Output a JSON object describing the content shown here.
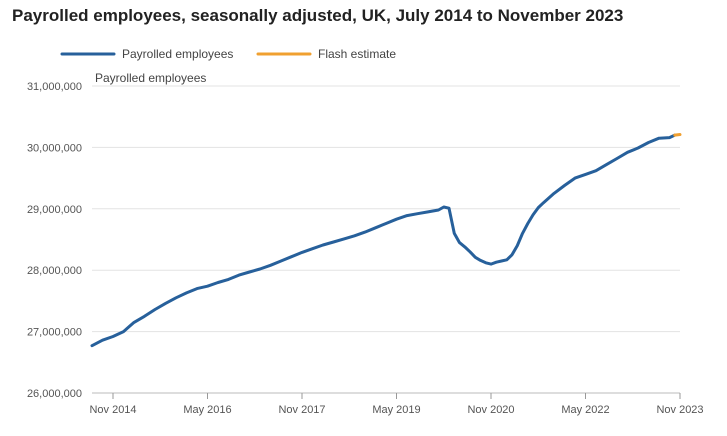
{
  "chart_data": {
    "type": "line",
    "title": "Payrolled employees, seasonally adjusted, UK, July 2014 to November 2023",
    "ylabel": "Payrolled employees",
    "ylim": [
      26000000,
      31000000
    ],
    "yticks": [
      26000000,
      27000000,
      28000000,
      29000000,
      30000000,
      31000000
    ],
    "ytick_labels": [
      "26,000,000",
      "27,000,000",
      "28,000,000",
      "29,000,000",
      "30,000,000",
      "31,000,000"
    ],
    "xlim": [
      "2014-07",
      "2023-11"
    ],
    "xtick_labels": [
      "Nov 2014",
      "May 2016",
      "Nov 2017",
      "May 2019",
      "Nov 2020",
      "May 2022",
      "Nov 2023"
    ],
    "xtick_dates": [
      "2014-11",
      "2016-05",
      "2017-11",
      "2019-05",
      "2020-11",
      "2022-05",
      "2023-11"
    ],
    "grid": true,
    "legend_position": "top-left",
    "series": [
      {
        "name": "Payrolled employees",
        "color": "#27609b",
        "points": [
          [
            "2014-07",
            26770000
          ],
          [
            "2014-09",
            26860000
          ],
          [
            "2014-11",
            26920000
          ],
          [
            "2015-01",
            27000000
          ],
          [
            "2015-03",
            27150000
          ],
          [
            "2015-05",
            27250000
          ],
          [
            "2015-07",
            27360000
          ],
          [
            "2015-09",
            27460000
          ],
          [
            "2015-11",
            27550000
          ],
          [
            "2016-01",
            27630000
          ],
          [
            "2016-03",
            27700000
          ],
          [
            "2016-05",
            27740000
          ],
          [
            "2016-07",
            27800000
          ],
          [
            "2016-09",
            27850000
          ],
          [
            "2016-11",
            27920000
          ],
          [
            "2017-01",
            27970000
          ],
          [
            "2017-03",
            28020000
          ],
          [
            "2017-05",
            28080000
          ],
          [
            "2017-07",
            28150000
          ],
          [
            "2017-09",
            28220000
          ],
          [
            "2017-11",
            28290000
          ],
          [
            "2018-01",
            28350000
          ],
          [
            "2018-03",
            28410000
          ],
          [
            "2018-05",
            28460000
          ],
          [
            "2018-07",
            28510000
          ],
          [
            "2018-09",
            28560000
          ],
          [
            "2018-11",
            28620000
          ],
          [
            "2019-01",
            28690000
          ],
          [
            "2019-03",
            28760000
          ],
          [
            "2019-05",
            28830000
          ],
          [
            "2019-07",
            28890000
          ],
          [
            "2019-09",
            28920000
          ],
          [
            "2019-11",
            28950000
          ],
          [
            "2020-01",
            28980000
          ],
          [
            "2020-02",
            29030000
          ],
          [
            "2020-03",
            29010000
          ],
          [
            "2020-04",
            28600000
          ],
          [
            "2020-05",
            28450000
          ],
          [
            "2020-06",
            28380000
          ],
          [
            "2020-07",
            28300000
          ],
          [
            "2020-08",
            28210000
          ],
          [
            "2020-09",
            28160000
          ],
          [
            "2020-10",
            28120000
          ],
          [
            "2020-11",
            28100000
          ],
          [
            "2020-12",
            28130000
          ],
          [
            "2021-01",
            28150000
          ],
          [
            "2021-02",
            28170000
          ],
          [
            "2021-03",
            28250000
          ],
          [
            "2021-04",
            28400000
          ],
          [
            "2021-05",
            28600000
          ],
          [
            "2021-06",
            28760000
          ],
          [
            "2021-07",
            28900000
          ],
          [
            "2021-08",
            29020000
          ],
          [
            "2021-09",
            29100000
          ],
          [
            "2021-11",
            29250000
          ],
          [
            "2022-01",
            29380000
          ],
          [
            "2022-03",
            29500000
          ],
          [
            "2022-05",
            29560000
          ],
          [
            "2022-07",
            29620000
          ],
          [
            "2022-09",
            29720000
          ],
          [
            "2022-11",
            29820000
          ],
          [
            "2023-01",
            29920000
          ],
          [
            "2023-03",
            29990000
          ],
          [
            "2023-05",
            30080000
          ],
          [
            "2023-07",
            30150000
          ],
          [
            "2023-09",
            30160000
          ],
          [
            "2023-10",
            30200000
          ]
        ]
      },
      {
        "name": "Flash estimate",
        "color": "#f0a030",
        "points": [
          [
            "2023-10",
            30200000
          ],
          [
            "2023-11",
            30210000
          ]
        ]
      }
    ]
  }
}
